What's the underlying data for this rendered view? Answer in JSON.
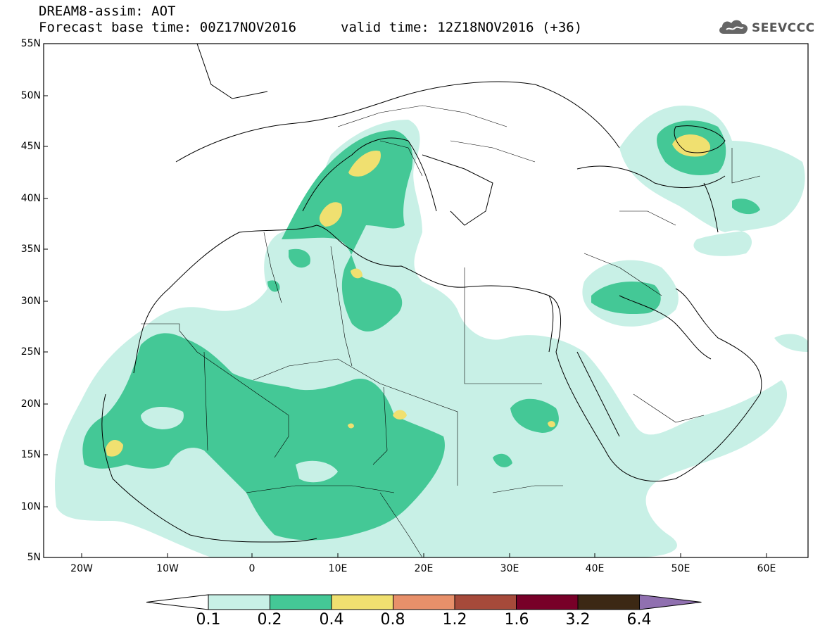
{
  "header": {
    "title_line1": "DREAM8-assim: AOT",
    "title_line2": "Forecast base time: 00Z17NOV2016",
    "valid_time": "valid time: 12Z18NOV2016 (+36)",
    "logo_text": "SEEVCCC"
  },
  "axes": {
    "lat_labels": [
      "55N",
      "50N",
      "45N",
      "40N",
      "35N",
      "30N",
      "25N",
      "20N",
      "15N",
      "10N",
      "5N"
    ],
    "lon_labels": [
      "20W",
      "10W",
      "0",
      "10E",
      "20E",
      "30E",
      "40E",
      "50E",
      "60E"
    ]
  },
  "colorbar": {
    "labels": [
      "0.1",
      "0.2",
      "0.4",
      "0.8",
      "1.2",
      "1.6",
      "3.2",
      "6.4"
    ],
    "colors": [
      "#ffffff",
      "#c8f0e6",
      "#44c896",
      "#f0e070",
      "#e8906a",
      "#a64a3a",
      "#780028",
      "#3c2814",
      "#9070b0"
    ]
  },
  "colors": {
    "level_0_1": "#c8f0e6",
    "level_0_2": "#44c896",
    "level_0_4": "#f0e070"
  }
}
